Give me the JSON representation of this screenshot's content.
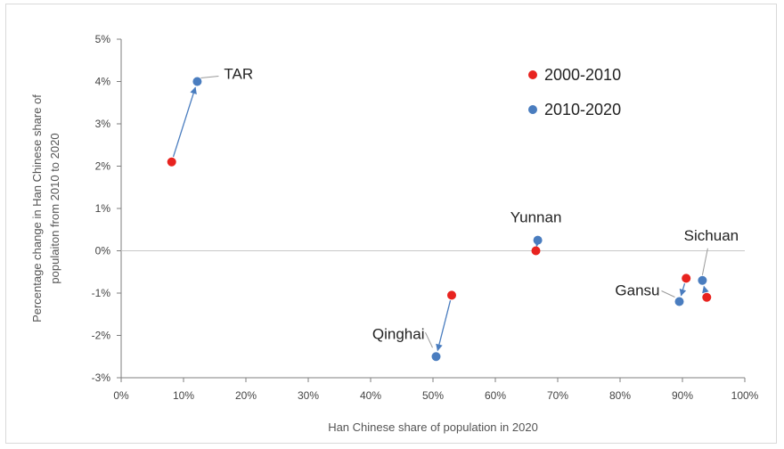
{
  "chart_data": {
    "type": "scatter",
    "xlabel": "Han Chinese share of population in 2020",
    "ylabel": "Percentage change in Han Chinese share of populaiton from 2010 to 2020",
    "xlim": [
      0,
      100
    ],
    "ylim": [
      -3,
      5
    ],
    "x_ticks": [
      "0%",
      "10%",
      "20%",
      "30%",
      "40%",
      "50%",
      "60%",
      "70%",
      "80%",
      "90%",
      "100%"
    ],
    "y_ticks": [
      "5%",
      "4%",
      "3%",
      "2%",
      "1%",
      "0%",
      "-1%",
      "-2%",
      "-3%"
    ],
    "grid": false,
    "zero_line": true,
    "legend_position": "top-right",
    "series": [
      {
        "name": "2000-2010",
        "color": "#e8231f",
        "points": [
          {
            "region": "TAR",
            "x": 8.1,
            "y": 2.1
          },
          {
            "region": "Qinghai",
            "x": 53.0,
            "y": -1.05
          },
          {
            "region": "Yunnan",
            "x": 66.5,
            "y": 0.0
          },
          {
            "region": "Gansu",
            "x": 90.6,
            "y": -0.65
          },
          {
            "region": "Sichuan",
            "x": 93.9,
            "y": -1.1
          }
        ]
      },
      {
        "name": "2010-2020",
        "color": "#4a7dbf",
        "points": [
          {
            "region": "TAR",
            "x": 12.2,
            "y": 4.0
          },
          {
            "region": "Qinghai",
            "x": 50.5,
            "y": -2.5
          },
          {
            "region": "Yunnan",
            "x": 66.8,
            "y": 0.25
          },
          {
            "region": "Gansu",
            "x": 89.5,
            "y": -1.2
          },
          {
            "region": "Sichuan",
            "x": 93.2,
            "y": -0.7
          }
        ]
      }
    ],
    "labels": [
      {
        "text": "TAR",
        "region": "TAR"
      },
      {
        "text": "Qinghai",
        "region": "Qinghai"
      },
      {
        "text": "Yunnan",
        "region": "Yunnan"
      },
      {
        "text": "Gansu",
        "region": "Gansu"
      },
      {
        "text": "Sichuan",
        "region": "Sichuan"
      }
    ]
  }
}
